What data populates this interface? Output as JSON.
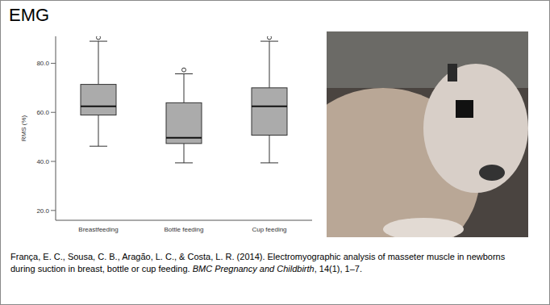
{
  "title": "EMG",
  "chart_data": {
    "type": "boxplot",
    "categories": [
      "Breastfeeding",
      "Bottle feeding",
      "Cup feeding"
    ],
    "y_label": "RMS (%)",
    "min": [
      46.2,
      39.4,
      39.4
    ],
    "q1": [
      58.9,
      47.3,
      50.7
    ],
    "median": [
      62.5,
      49.6,
      62.5
    ],
    "q3": [
      71.4,
      63.9,
      70
    ],
    "max": [
      89,
      75.7,
      89
    ],
    "outliers": [
      [
        90.5
      ],
      [
        77.3
      ],
      [
        90.5
      ]
    ],
    "color": "#ababab",
    "ylim": [
      16,
      91
    ],
    "yticks": [
      {
        "value": 20,
        "label": "20.0"
      },
      {
        "value": 40,
        "label": "40.0"
      },
      {
        "value": 60,
        "label": "60.0"
      },
      {
        "value": 80,
        "label": "80.0"
      }
    ],
    "grid": false
  },
  "citation": {
    "text": "França, E. C., Sousa, C. B., Aragão, L. C., & Costa, L. R. (2014). Electromyographic analysis of masseter muscle in newborns during suction in breast, bottle or cup feeding. ",
    "journal": "BMC Pregnancy and Childbirth",
    "volume": ", 14(1), 1–7."
  }
}
